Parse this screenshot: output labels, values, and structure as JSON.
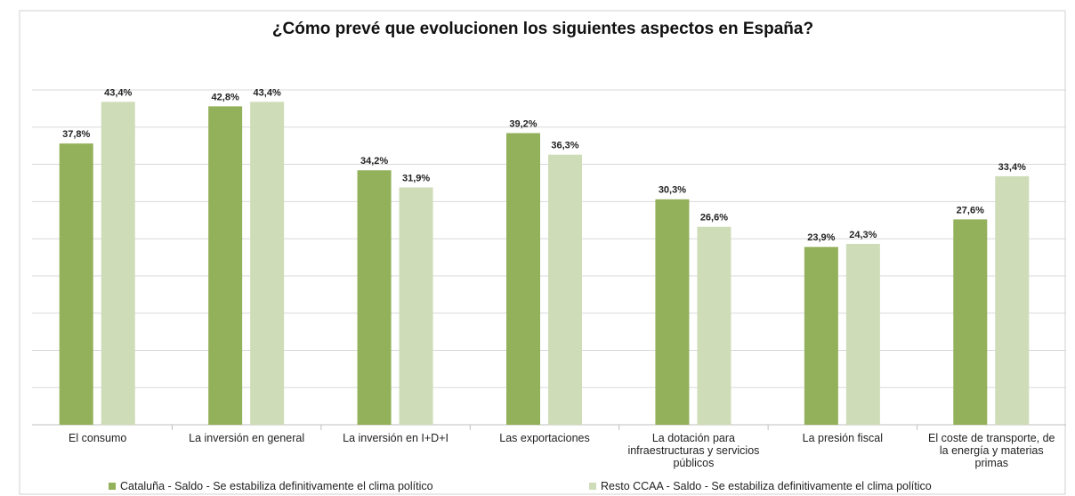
{
  "chart_data": {
    "type": "bar",
    "title": "¿Cómo prevé que evolucionen los siguientes aspectos en España?",
    "categories": [
      "El consumo",
      "La inversión en general",
      "La inversión en I+D+I",
      "Las exportaciones",
      "La dotación para infraestructuras y servicios públicos",
      "La presión fiscal",
      "El coste de transporte, de la energía y materias primas"
    ],
    "series": [
      {
        "name": "Cataluña - Saldo - Se estabiliza definitivamente el clima político",
        "color": "#93b05a",
        "values": [
          37.8,
          42.8,
          34.2,
          39.2,
          30.3,
          23.9,
          27.6
        ],
        "value_labels": [
          "37,8%",
          "42,8%",
          "34,2%",
          "39,2%",
          "30,3%",
          "23,9%",
          "27,6%"
        ]
      },
      {
        "name": "Resto CCAA - Saldo - Se estabiliza definitivamente el clima político",
        "color": "#cfdcb8",
        "values": [
          43.4,
          43.4,
          31.9,
          36.3,
          26.6,
          24.3,
          33.4
        ],
        "value_labels": [
          "43,4%",
          "43,4%",
          "31,9%",
          "36,3%",
          "26,6%",
          "24,3%",
          "33,4%"
        ]
      }
    ],
    "ylim": [
      0,
      45
    ],
    "yticks": [
      0,
      5,
      10,
      15,
      20,
      25,
      30,
      35,
      40,
      45
    ],
    "grid": true,
    "legend": "bottom"
  }
}
